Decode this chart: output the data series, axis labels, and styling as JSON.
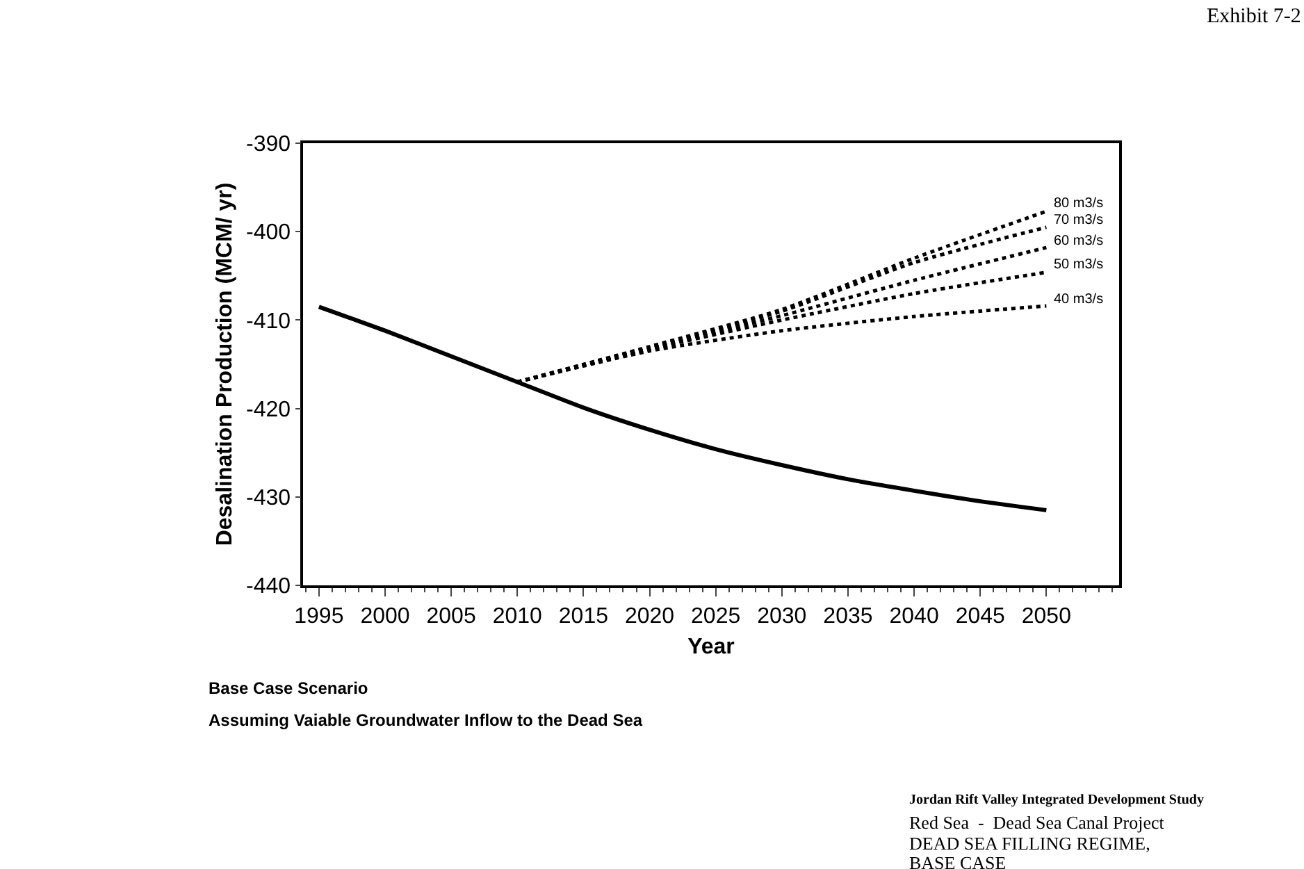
{
  "chart_data": {
    "type": "line",
    "xlabel": "Year",
    "ylabel": "Desalination Production (MCM/ yr)",
    "xlim": [
      1993.8,
      2055.5
    ],
    "xticks": [
      1995,
      2000,
      2005,
      2010,
      2015,
      2020,
      2025,
      2030,
      2035,
      2040,
      2045,
      2050
    ],
    "ylim": [
      -440,
      -390
    ],
    "yticks": [
      -440,
      -430,
      -420,
      -410,
      -400,
      -390
    ],
    "grid": false,
    "legend": false,
    "marker": "none",
    "series": [
      {
        "color": "#000000",
        "line_style": "solid",
        "x": [
          1995,
          2000,
          2005,
          2010,
          2015,
          2020,
          2025,
          2030,
          2035,
          2040,
          2045,
          2050
        ],
        "values": [
          -408.5,
          -411.2,
          -414.1,
          -417,
          -419.9,
          -422.4,
          -424.6,
          -426.4,
          -428,
          -429.3,
          -430.5,
          -431.5
        ]
      },
      {
        "name": "80 m3/s",
        "color": "#000000",
        "line_style": "dotted",
        "x": [
          2010,
          2020,
          2030,
          2040,
          2050
        ],
        "values": [
          -417,
          -413,
          -408.8,
          -403,
          -397.7
        ]
      },
      {
        "name": "70 m3/s",
        "color": "#000000",
        "line_style": "dotted",
        "x": [
          2010,
          2020,
          2030,
          2040,
          2050
        ],
        "values": [
          -417,
          -413.1,
          -409,
          -403.5,
          -399.5
        ]
      },
      {
        "name": "60 m3/s",
        "color": "#000000",
        "line_style": "dotted",
        "x": [
          2010,
          2020,
          2030,
          2040,
          2050
        ],
        "values": [
          -417,
          -413.2,
          -409.5,
          -405.5,
          -401.8
        ]
      },
      {
        "name": "50 m3/s",
        "color": "#000000",
        "line_style": "dotted",
        "x": [
          2010,
          2020,
          2030,
          2040,
          2050
        ],
        "values": [
          -417,
          -413.3,
          -410,
          -407,
          -404.6
        ]
      },
      {
        "name": "40 m3/s",
        "color": "#000000",
        "line_style": "dotted",
        "x": [
          2010,
          2020,
          2030,
          2040,
          2050
        ],
        "values": [
          -417,
          -413.5,
          -411.2,
          -409.6,
          -408.4
        ]
      }
    ],
    "annotations": [
      "Exhibit 7-2",
      "Base Case Scenario",
      "Assuming Vaiable Groundwater Inflow to the Dead Sea",
      "Jordan Rift Valley Integrated Development Study",
      "Red Sea  -  Dead Sea Canal Project",
      "DEAD SEA FILLING REGIME,",
      "BASE CASE"
    ]
  }
}
